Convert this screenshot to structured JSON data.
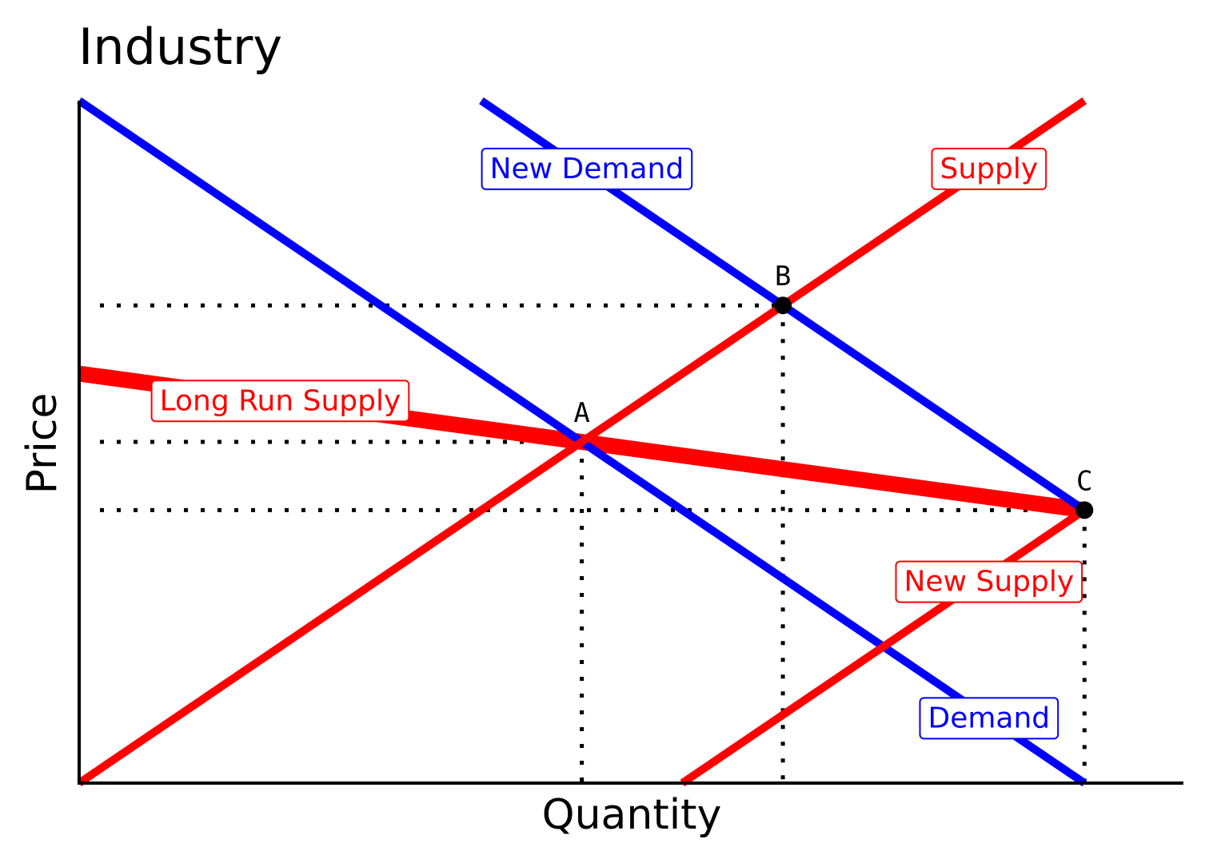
{
  "chart_data": {
    "type": "line",
    "title": "Industry",
    "xlabel": "Quantity",
    "ylabel": "Price",
    "xlim": [
      0,
      11
    ],
    "ylim": [
      0,
      10
    ],
    "show_tick_labels": false,
    "grid": false,
    "series": [
      {
        "name": "Demand",
        "color": "#0000ff",
        "width": "normal",
        "label_at": [
          9.05,
          0.95
        ],
        "points": [
          [
            0,
            10
          ],
          [
            10,
            0
          ]
        ]
      },
      {
        "name": "New Demand",
        "color": "#0000ff",
        "width": "normal",
        "label_at": [
          5.05,
          9.0
        ],
        "points": [
          [
            4,
            10
          ],
          [
            10,
            4
          ]
        ]
      },
      {
        "name": "Supply",
        "color": "#ff0000",
        "width": "normal",
        "label_at": [
          9.05,
          9.0
        ],
        "points": [
          [
            0,
            0
          ],
          [
            10,
            10
          ]
        ]
      },
      {
        "name": "New Supply",
        "color": "#ff0000",
        "width": "normal",
        "label_at": [
          9.05,
          2.95
        ],
        "points": [
          [
            6,
            0
          ],
          [
            10,
            4
          ]
        ]
      },
      {
        "name": "Long Run Supply",
        "color": "#ff0000",
        "width": "thick",
        "label_at": [
          2.0,
          5.6
        ],
        "points": [
          [
            0,
            6
          ],
          [
            10,
            4
          ]
        ]
      }
    ],
    "points": [
      {
        "label": "A",
        "x": 5,
        "y": 5,
        "dot": false
      },
      {
        "label": "B",
        "x": 7,
        "y": 7,
        "dot": true
      },
      {
        "label": "C",
        "x": 10,
        "y": 4,
        "dot": true
      }
    ],
    "guides": [
      {
        "x": 5,
        "y": 5
      },
      {
        "x": 7,
        "y": 7
      },
      {
        "x": 10,
        "y": 4
      }
    ]
  }
}
